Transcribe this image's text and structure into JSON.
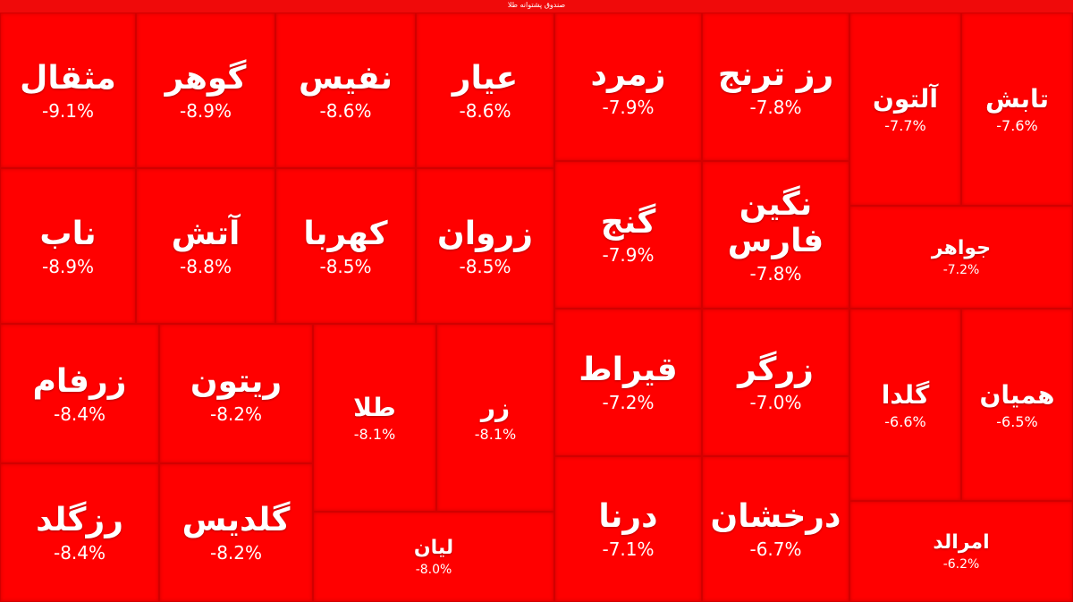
{
  "chart_data": {
    "type": "treemap",
    "title": "صندوق پشتوانه طلا",
    "unit": "%",
    "color": "#ff0000",
    "items": [
      {
        "name": "مثقال",
        "label": "-9.1%",
        "value": -9.1
      },
      {
        "name": "گوهر",
        "label": "-8.9%",
        "value": -8.9
      },
      {
        "name": "نفیس",
        "label": "-8.6%",
        "value": -8.6
      },
      {
        "name": "عیار",
        "label": "-8.6%",
        "value": -8.6
      },
      {
        "name": "ناب",
        "label": "-8.9%",
        "value": -8.9
      },
      {
        "name": "آتش",
        "label": "-8.8%",
        "value": -8.8
      },
      {
        "name": "کهربا",
        "label": "-8.5%",
        "value": -8.5
      },
      {
        "name": "زروان",
        "label": "-8.5%",
        "value": -8.5
      },
      {
        "name": "زرفام",
        "label": "-8.4%",
        "value": -8.4
      },
      {
        "name": "ریتون",
        "label": "-8.2%",
        "value": -8.2
      },
      {
        "name": "طلا",
        "label": "-8.1%",
        "value": -8.1
      },
      {
        "name": "زر",
        "label": "-8.1%",
        "value": -8.1
      },
      {
        "name": "رزگلد",
        "label": "-8.4%",
        "value": -8.4
      },
      {
        "name": "گلدیس",
        "label": "-8.2%",
        "value": -8.2
      },
      {
        "name": "لیان",
        "label": "-8.0%",
        "value": -8.0
      },
      {
        "name": "زمرد",
        "label": "-7.9%",
        "value": -7.9
      },
      {
        "name": "رز ترنج",
        "label": "-7.8%",
        "value": -7.8
      },
      {
        "name": "گنج",
        "label": "-7.9%",
        "value": -7.9
      },
      {
        "name": "نگین فارس",
        "label": "-7.8%",
        "value": -7.8
      },
      {
        "name": "قیراط",
        "label": "-7.2%",
        "value": -7.2
      },
      {
        "name": "زرگر",
        "label": "-7.0%",
        "value": -7.0
      },
      {
        "name": "درنا",
        "label": "-7.1%",
        "value": -7.1
      },
      {
        "name": "درخشان",
        "label": "-6.7%",
        "value": -6.7
      },
      {
        "name": "آلتون",
        "label": "-7.7%",
        "value": -7.7
      },
      {
        "name": "تابش",
        "label": "-7.6%",
        "value": -7.6
      },
      {
        "name": "جواهر",
        "label": "-7.2%",
        "value": -7.2
      },
      {
        "name": "گلدا",
        "label": "-6.6%",
        "value": -6.6
      },
      {
        "name": "همیان",
        "label": "-6.5%",
        "value": -6.5
      },
      {
        "name": "امرالد",
        "label": "-6.2%",
        "value": -6.2
      }
    ]
  }
}
